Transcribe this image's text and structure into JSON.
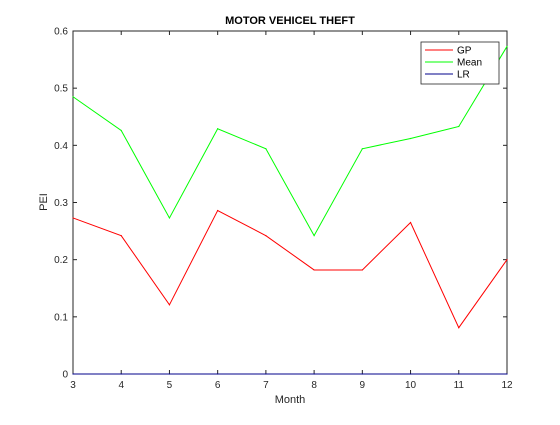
{
  "chart_data": {
    "type": "line",
    "title": "MOTOR VEHICEL THEFT",
    "xlabel": "Month",
    "ylabel": "PEI",
    "x": [
      3,
      4,
      5,
      6,
      7,
      8,
      9,
      10,
      11,
      12
    ],
    "xlim": [
      3,
      12
    ],
    "ylim": [
      0,
      0.6
    ],
    "xticks": [
      3,
      4,
      5,
      6,
      7,
      8,
      9,
      10,
      11,
      12
    ],
    "yticks": [
      0,
      0.1,
      0.2,
      0.3,
      0.4,
      0.5,
      0.6
    ],
    "grid": false,
    "legend_position": "top-right",
    "series": [
      {
        "name": "GP",
        "color": "#ff0000",
        "values": [
          0.273,
          0.242,
          0.121,
          0.286,
          0.242,
          0.182,
          0.182,
          0.265,
          0.081,
          0.2
        ]
      },
      {
        "name": "Mean",
        "color": "#00ff00",
        "values": [
          0.485,
          0.426,
          0.273,
          0.429,
          0.394,
          0.242,
          0.394,
          0.412,
          0.433,
          0.573
        ]
      },
      {
        "name": "LR",
        "color": "#00008b",
        "values": [
          0,
          0,
          0,
          0,
          0,
          0,
          0,
          0,
          0,
          0
        ]
      }
    ]
  }
}
